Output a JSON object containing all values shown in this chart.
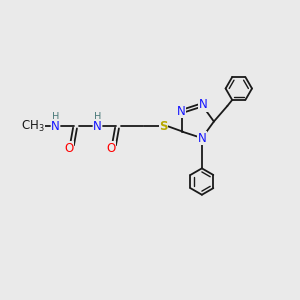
{
  "bg_color": "#eaeaea",
  "bond_color": "#1a1a1a",
  "N_color": "#1414ff",
  "O_color": "#ff0000",
  "S_color": "#b8a800",
  "H_color": "#4a7a7a",
  "lw": 1.3,
  "lw2": 1.0,
  "fs": 8.5,
  "fsH": 7.0,
  "xlim": [
    0,
    10
  ],
  "ylim": [
    0,
    10
  ]
}
